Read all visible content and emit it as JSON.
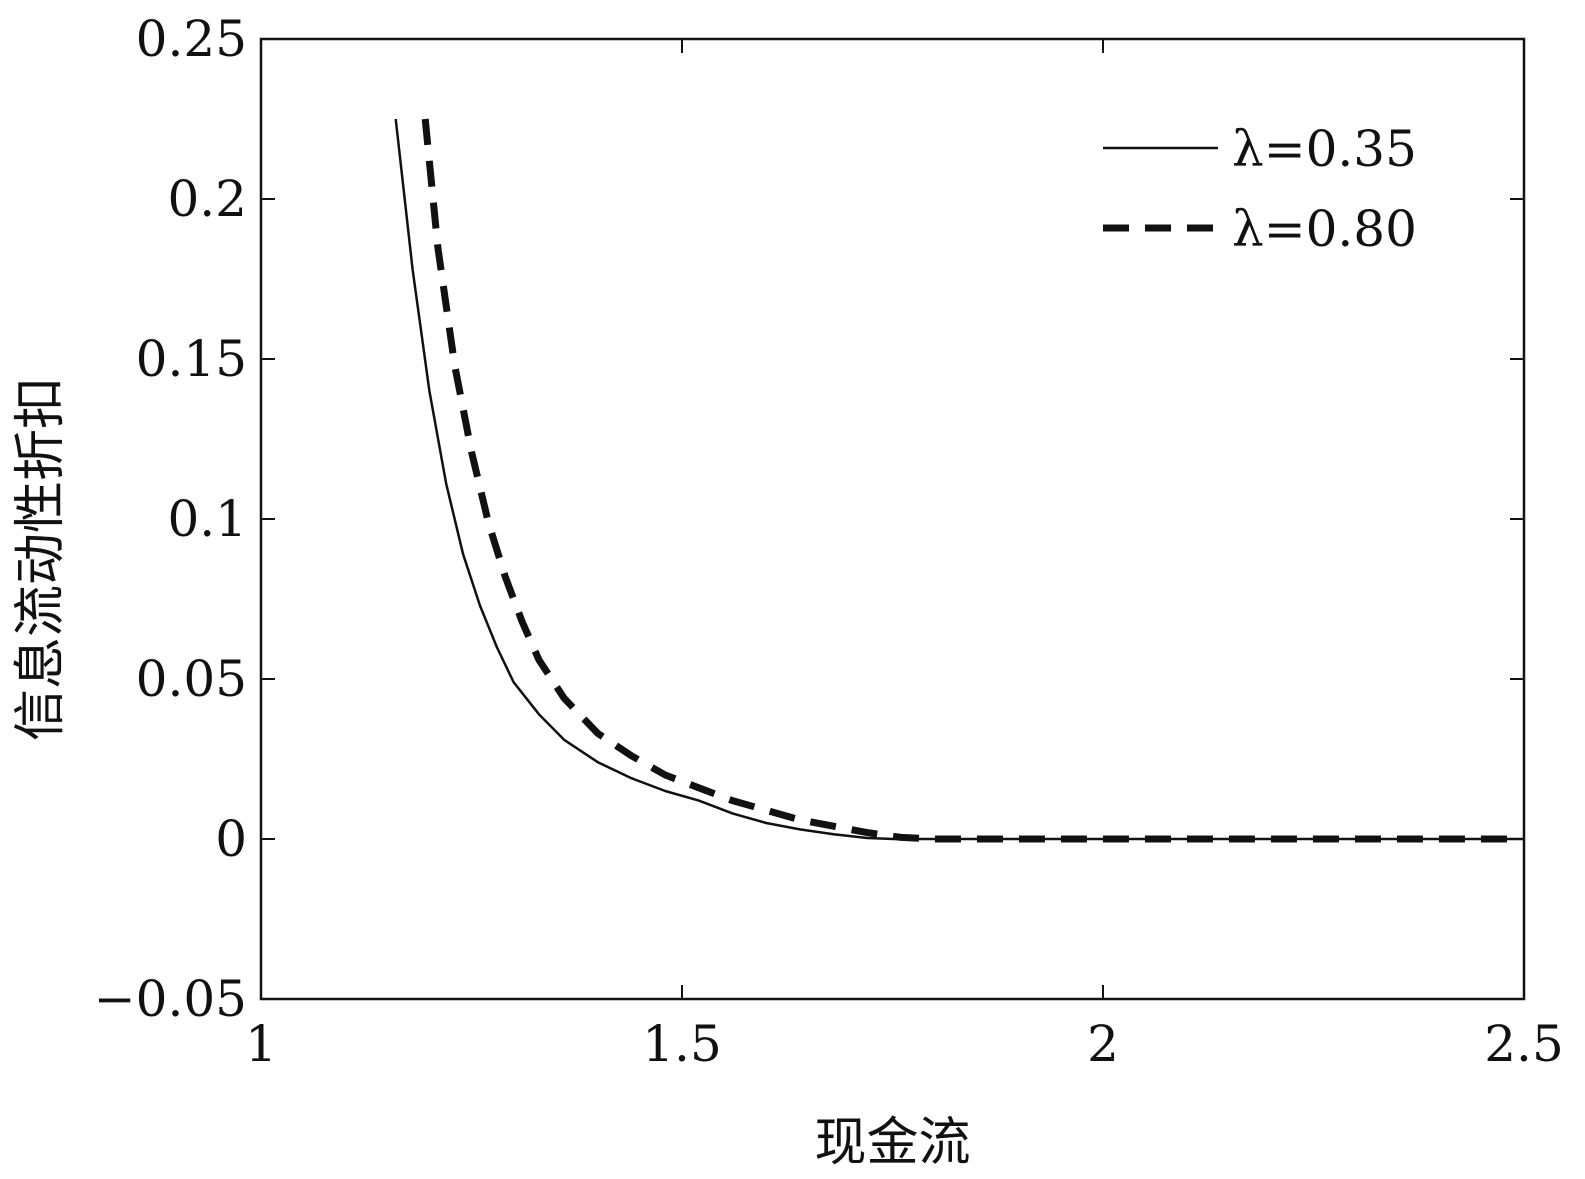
{
  "chart_data": {
    "type": "line",
    "title": "",
    "xlabel": "现金流",
    "ylabel": "信息流动性折扣",
    "xlim": [
      1,
      2.5
    ],
    "ylim": [
      -0.05,
      0.25
    ],
    "xticks": [
      {
        "value": 1,
        "label": "1"
      },
      {
        "value": 1.5,
        "label": "1.5"
      },
      {
        "value": 2,
        "label": "2"
      },
      {
        "value": 2.5,
        "label": "2.5"
      }
    ],
    "yticks": [
      {
        "value": -0.05,
        "label": "−0.05"
      },
      {
        "value": 0,
        "label": "0"
      },
      {
        "value": 0.05,
        "label": "0.05"
      },
      {
        "value": 0.1,
        "label": "0.1"
      },
      {
        "value": 0.15,
        "label": "0.15"
      },
      {
        "value": 0.2,
        "label": "0.2"
      },
      {
        "value": 0.25,
        "label": "0.25"
      }
    ],
    "grid": false,
    "legend_position": "top-right",
    "series": [
      {
        "name": "λ=0.35",
        "style": "solid",
        "color": "#111111",
        "x": [
          1.16,
          1.18,
          1.2,
          1.22,
          1.24,
          1.26,
          1.28,
          1.3,
          1.33,
          1.36,
          1.4,
          1.44,
          1.48,
          1.52,
          1.56,
          1.6,
          1.64,
          1.68,
          1.72,
          1.75,
          1.8,
          1.9,
          2.0,
          2.2,
          2.4,
          2.5
        ],
        "y": [
          0.225,
          0.178,
          0.14,
          0.111,
          0.089,
          0.073,
          0.06,
          0.049,
          0.039,
          0.031,
          0.024,
          0.019,
          0.015,
          0.012,
          0.008,
          0.005,
          0.003,
          0.0015,
          0.0003,
          0.0,
          0.0,
          0.0,
          0.0,
          0.0,
          0.0,
          0.0
        ]
      },
      {
        "name": "λ=0.80",
        "style": "dashed",
        "color": "#111111",
        "x": [
          1.195,
          1.21,
          1.23,
          1.25,
          1.27,
          1.29,
          1.31,
          1.33,
          1.36,
          1.4,
          1.44,
          1.48,
          1.52,
          1.56,
          1.6,
          1.64,
          1.68,
          1.72,
          1.76,
          1.8,
          1.9,
          2.0,
          2.2,
          2.4,
          2.5
        ],
        "y": [
          0.225,
          0.185,
          0.148,
          0.121,
          0.099,
          0.082,
          0.068,
          0.056,
          0.044,
          0.033,
          0.026,
          0.02,
          0.016,
          0.012,
          0.009,
          0.006,
          0.004,
          0.002,
          0.0005,
          0.0,
          0.0,
          0.0,
          0.0,
          0.0,
          0.0
        ]
      }
    ]
  }
}
